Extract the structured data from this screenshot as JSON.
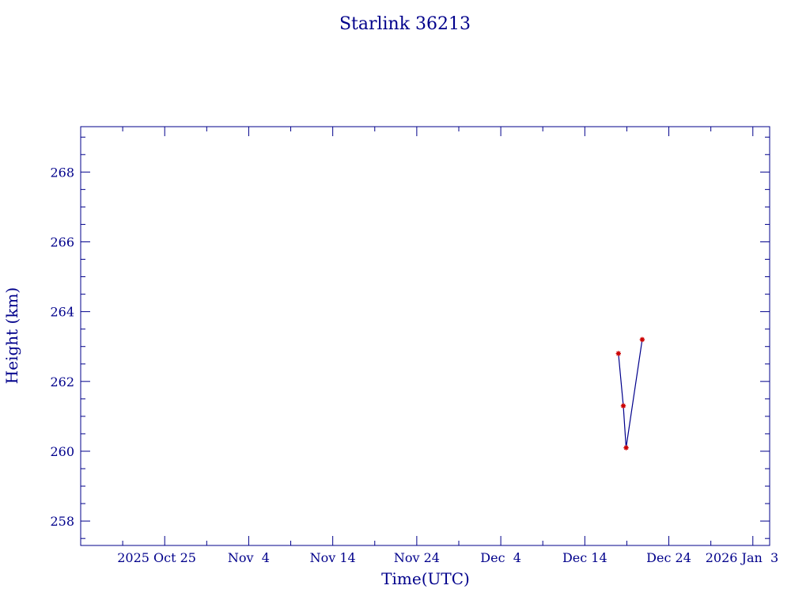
{
  "chart_data": {
    "type": "line",
    "title": "Starlink 36213",
    "xlabel": "Time(UTC)",
    "ylabel": "Height (km)",
    "xlim": [
      "2025-10-15",
      "2026-01-05"
    ],
    "ylim": [
      257.3,
      269.3
    ],
    "grid": false,
    "x_ticks": [
      {
        "date": "2025-10-25",
        "label": "2025 Oct 25"
      },
      {
        "date": "2025-11-04",
        "label": "Nov  4"
      },
      {
        "date": "2025-11-14",
        "label": "Nov 14"
      },
      {
        "date": "2025-11-24",
        "label": "Nov 24"
      },
      {
        "date": "2025-12-04",
        "label": "Dec  4"
      },
      {
        "date": "2025-12-14",
        "label": "Dec 14"
      },
      {
        "date": "2025-12-24",
        "label": "Dec 24"
      },
      {
        "date": "2026-01-03",
        "label": "2026 Jan  3"
      }
    ],
    "y_ticks": [
      258,
      260,
      262,
      264,
      266,
      268
    ],
    "series": [
      {
        "x": [
          "2025-12-18 00:00",
          "2025-12-18 14:00",
          "2025-12-18 22:00",
          "2025-12-20 20:00"
        ],
        "y": [
          262.8,
          261.3,
          260.1,
          263.2
        ],
        "marker": "asterisk"
      }
    ],
    "colors": {
      "axes": "#00008b",
      "line": "#00008b",
      "marker": "#cc0000"
    }
  }
}
